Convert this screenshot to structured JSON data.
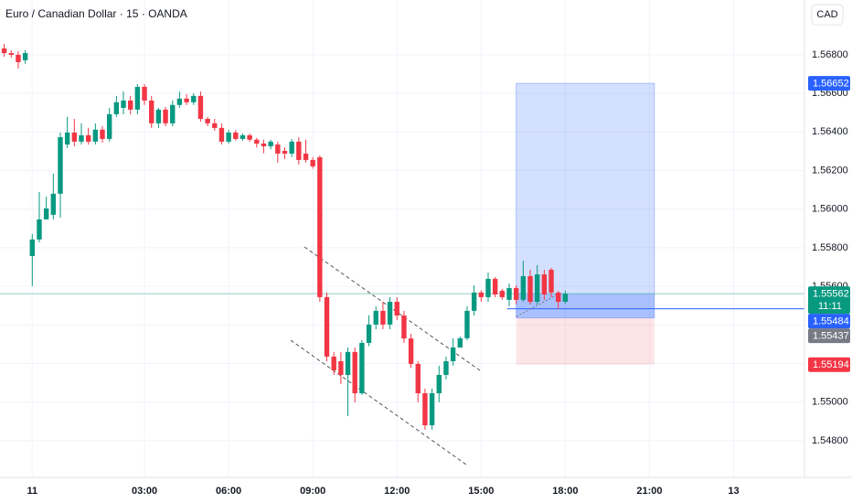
{
  "chart_data": {
    "type": "candlestick",
    "title": "Euro / Canadian Dollar · 15 · OANDA",
    "currency": "CAD",
    "up_color": "#089981",
    "down_color": "#f23645",
    "grid": true,
    "xlim": [
      -8.6,
      106.1
    ],
    "ylim": [
      1.5461,
      1.57084
    ],
    "xticks": [
      {
        "value": -4,
        "label": "11"
      },
      {
        "value": 12,
        "label": "03:00"
      },
      {
        "value": 24,
        "label": "06:00"
      },
      {
        "value": 36,
        "label": "09:00"
      },
      {
        "value": 48,
        "label": "12:00"
      },
      {
        "value": 60,
        "label": "15:00"
      },
      {
        "value": 72,
        "label": "18:00"
      },
      {
        "value": 84,
        "label": "21:00"
      },
      {
        "value": 96,
        "label": "13"
      }
    ],
    "yticks": [
      {
        "value": 1.568,
        "label": "1.56800"
      },
      {
        "value": 1.566,
        "label": "1.56600"
      },
      {
        "value": 1.564,
        "label": "1.56400"
      },
      {
        "value": 1.562,
        "label": "1.56200"
      },
      {
        "value": 1.56,
        "label": "1.56000"
      },
      {
        "value": 1.558,
        "label": "1.55800"
      },
      {
        "value": 1.556,
        "label": "1.55600"
      },
      {
        "value": 1.554,
        "label": "1.55400"
      },
      {
        "value": 1.552,
        "label": "1.55200"
      },
      {
        "value": 1.55,
        "label": "1.55000"
      },
      {
        "value": 1.548,
        "label": "1.54800"
      }
    ],
    "x": [
      -8,
      -7,
      -6,
      -5,
      -4,
      -3,
      -2,
      -1,
      0,
      1,
      2,
      3,
      4,
      5,
      6,
      7,
      8,
      9,
      10,
      11,
      12,
      13,
      14,
      15,
      16,
      17,
      18,
      19,
      20,
      21,
      22,
      23,
      24,
      25,
      26,
      27,
      28,
      29,
      30,
      31,
      32,
      33,
      34,
      35,
      36,
      37,
      38,
      39,
      40,
      41,
      42,
      43,
      44,
      45,
      46,
      47,
      48,
      49,
      50,
      51,
      52,
      53,
      54,
      55,
      56,
      57,
      58,
      59,
      60,
      61,
      62,
      63,
      64,
      65,
      66,
      67,
      68,
      69,
      70,
      71,
      72
    ],
    "open": [
      1.56833,
      1.56809,
      1.568,
      1.56772,
      1.55757,
      1.55843,
      1.55947,
      1.55971,
      1.5608,
      1.56335,
      1.56397,
      1.5635,
      1.56383,
      1.5635,
      1.56412,
      1.56364,
      1.56492,
      1.56525,
      1.56563,
      1.56516,
      1.56634,
      1.56563,
      1.56445,
      1.56516,
      1.56445,
      1.5654,
      1.56573,
      1.56554,
      1.56587,
      1.56468,
      1.56445,
      1.56421,
      1.5635,
      1.56397,
      1.56364,
      1.56383,
      1.5636,
      1.5634,
      1.56326,
      1.56335,
      1.56302,
      1.56288,
      1.5635,
      1.56288,
      1.56255,
      1.56269,
      1.55544,
      1.55236,
      1.55212,
      1.55141,
      1.5526,
      1.55046,
      1.55307,
      1.55402,
      1.55473,
      1.55402,
      1.5552,
      1.55449,
      1.5533,
      1.55198,
      1.55046,
      1.5488,
      1.55046,
      1.55141,
      1.55212,
      1.55283,
      1.55331,
      1.55473,
      1.55568,
      1.55544,
      1.55639,
      1.55577,
      1.5553,
      1.55591,
      1.5553,
      1.55653,
      1.5552,
      1.55662,
      1.55686,
      1.55568,
      1.5552
    ],
    "high": [
      1.56857,
      1.56824,
      1.56819,
      1.56824,
      1.55871,
      1.56089,
      1.56065,
      1.56184,
      1.56397,
      1.56478,
      1.56468,
      1.56445,
      1.56421,
      1.56445,
      1.5643,
      1.56525,
      1.56587,
      1.5661,
      1.56587,
      1.56648,
      1.56648,
      1.56587,
      1.56525,
      1.5653,
      1.56563,
      1.5661,
      1.56596,
      1.56601,
      1.5661,
      1.56478,
      1.56468,
      1.56445,
      1.56412,
      1.5641,
      1.56392,
      1.56392,
      1.5637,
      1.5636,
      1.5636,
      1.5635,
      1.5632,
      1.56364,
      1.56373,
      1.5636,
      1.5627,
      1.56279,
      1.55568,
      1.5526,
      1.5526,
      1.55283,
      1.55283,
      1.55321,
      1.5545,
      1.55497,
      1.5552,
      1.55544,
      1.55544,
      1.55473,
      1.55354,
      1.55212,
      1.5507,
      1.5507,
      1.55189,
      1.55236,
      1.55331,
      1.5534,
      1.55497,
      1.55605,
      1.5558,
      1.55672,
      1.55648,
      1.55587,
      1.55615,
      1.55605,
      1.55733,
      1.55686,
      1.5571,
      1.55686,
      1.55696,
      1.55577,
      1.55577
    ],
    "low": [
      1.5679,
      1.56786,
      1.56729,
      1.56753,
      1.55601,
      1.55828,
      1.55947,
      1.55947,
      1.55956,
      1.56317,
      1.56326,
      1.56335,
      1.56335,
      1.56335,
      1.56345,
      1.5635,
      1.56478,
      1.56492,
      1.56492,
      1.56492,
      1.5654,
      1.56421,
      1.56421,
      1.5643,
      1.5643,
      1.56525,
      1.5654,
      1.5654,
      1.56454,
      1.5643,
      1.56407,
      1.56335,
      1.5634,
      1.56355,
      1.56355,
      1.5635,
      1.5632,
      1.5629,
      1.5631,
      1.56241,
      1.5626,
      1.5627,
      1.56231,
      1.56241,
      1.5621,
      1.5552,
      1.55212,
      1.55141,
      1.55094,
      1.54928,
      1.54999,
      1.55037,
      1.5529,
      1.55378,
      1.55378,
      1.55378,
      1.55426,
      1.55307,
      1.55179,
      1.54999,
      1.54857,
      1.54857,
      1.54999,
      1.55118,
      1.55189,
      1.55283,
      1.55321,
      1.55449,
      1.5552,
      1.5552,
      1.55544,
      1.5553,
      1.55497,
      1.55507,
      1.5552,
      1.55506,
      1.55506,
      1.5553,
      1.55544,
      1.55482,
      1.5551
    ],
    "close": [
      1.56809,
      1.568,
      1.56762,
      1.56809,
      1.55843,
      1.55947,
      1.56004,
      1.5608,
      1.56373,
      1.56397,
      1.5635,
      1.56383,
      1.5635,
      1.56412,
      1.56364,
      1.56492,
      1.56554,
      1.56563,
      1.56516,
      1.56634,
      1.56563,
      1.56445,
      1.56516,
      1.56445,
      1.5654,
      1.56573,
      1.56554,
      1.56587,
      1.56468,
      1.56445,
      1.56421,
      1.5635,
      1.56397,
      1.56364,
      1.56383,
      1.5636,
      1.5634,
      1.56326,
      1.5635,
      1.56288,
      1.56288,
      1.5635,
      1.56255,
      1.56255,
      1.56222,
      1.55544,
      1.55236,
      1.55165,
      1.55141,
      1.5526,
      1.55046,
      1.55307,
      1.55402,
      1.55473,
      1.55402,
      1.5552,
      1.55449,
      1.5533,
      1.55198,
      1.55046,
      1.5488,
      1.55046,
      1.55141,
      1.55212,
      1.55283,
      1.55331,
      1.55473,
      1.55568,
      1.55544,
      1.55639,
      1.55558,
      1.55544,
      1.55591,
      1.5553,
      1.55653,
      1.5552,
      1.55662,
      1.55558,
      1.55568,
      1.5552,
      1.55562
    ],
    "position": {
      "from": 65,
      "to": 84.7,
      "target": {
        "value": 1.56652,
        "label": "1.56652",
        "color": "#2962ff"
      },
      "entry": {
        "value": 1.55437,
        "label": "1.55437",
        "color": "#787b86"
      },
      "stop": {
        "value": 1.55194,
        "label": "1.55194",
        "color": "#f23645"
      }
    },
    "alert_line": {
      "value": 1.55484,
      "label": "1.55484",
      "color": "#2962ff"
    },
    "last_price": {
      "value": 1.55562,
      "label": "1.55562",
      "countdown": "11:11",
      "color": "#089981"
    }
  }
}
